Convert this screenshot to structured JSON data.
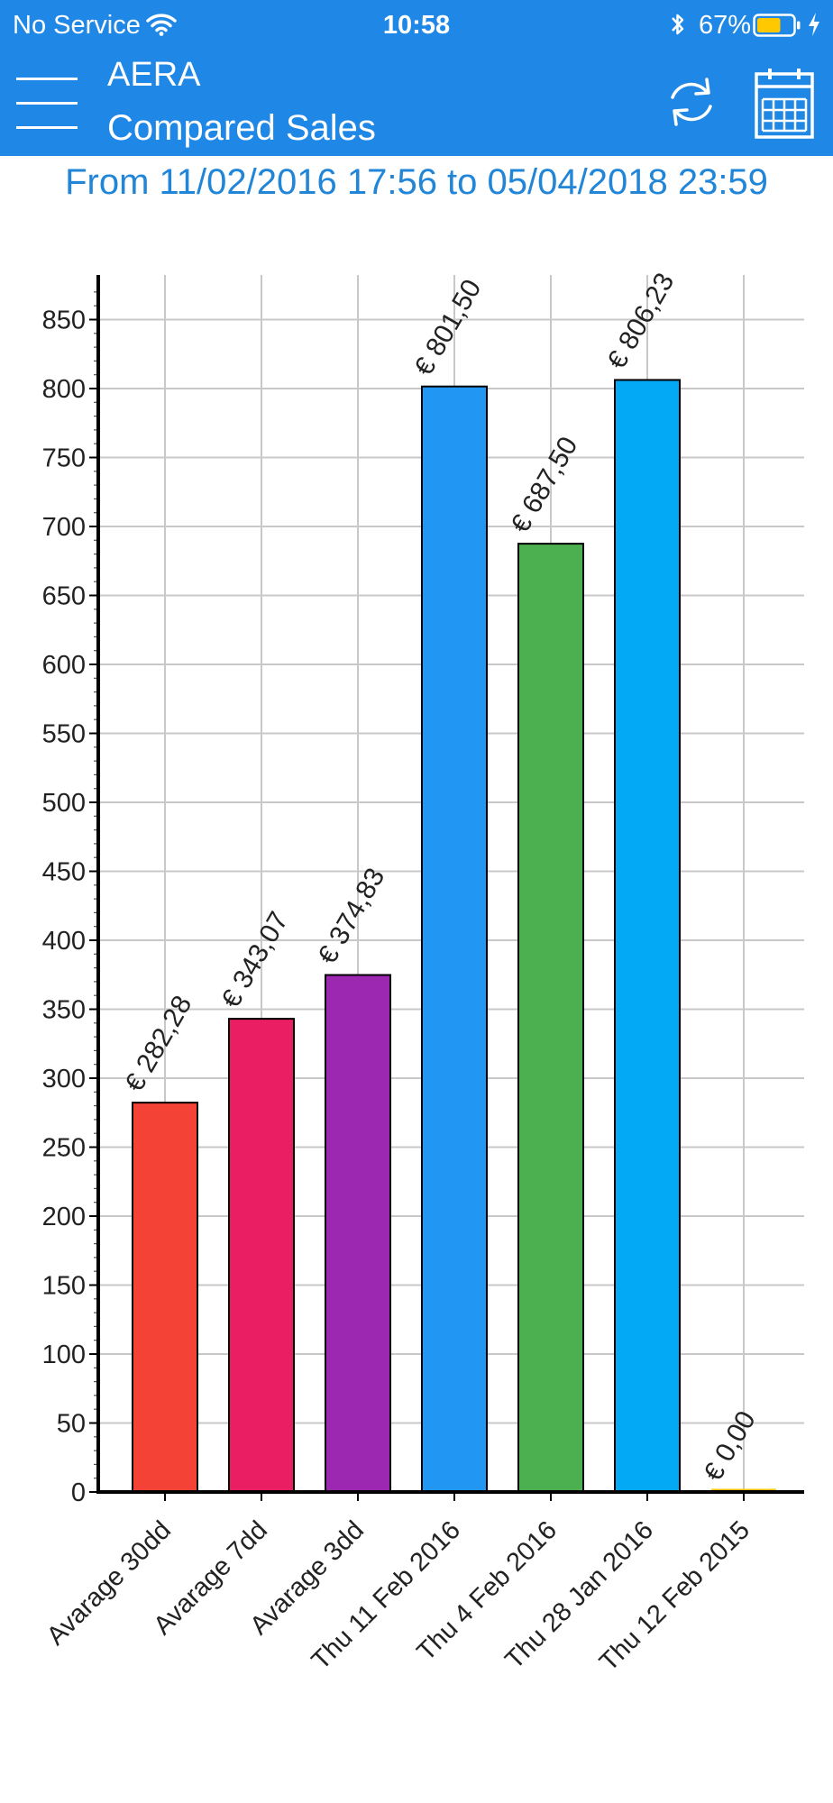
{
  "status_bar": {
    "carrier": "No Service",
    "time": "10:58",
    "battery": "67%",
    "battery_level": 0.67
  },
  "header": {
    "app_name": "AERA",
    "title": "Compared Sales",
    "menu_icon": "hamburger-menu-icon",
    "refresh_icon": "refresh-icon",
    "calendar_icon": "calendar-icon"
  },
  "period_label": "From 11/02/2016 17:56 to 05/04/2018 23:59",
  "chart_data": {
    "type": "bar",
    "categories": [
      "Avarage 30dd",
      "Avarage 7dd",
      "Avarage 3dd",
      "Thu 11 Feb 2016",
      "Thu 4 Feb 2016",
      "Thu 28 Jan 2016",
      "Thu 12 Feb 2015"
    ],
    "values": [
      282.28,
      343.07,
      374.83,
      801.5,
      687.5,
      806.23,
      0.0
    ],
    "value_labels": [
      "€ 282,28",
      "€ 343,07",
      "€ 374,83",
      "€ 801,50",
      "€ 687,50",
      "€ 806,23",
      "€ 0,00"
    ],
    "colors": [
      "#f44336",
      "#e91e63",
      "#9c27b0",
      "#2196f3",
      "#4caf50",
      "#03a9f4",
      "#ffc107"
    ],
    "y_ticks": [
      0,
      50,
      100,
      150,
      200,
      250,
      300,
      350,
      400,
      450,
      500,
      550,
      600,
      650,
      700,
      750,
      800,
      850
    ],
    "ylim": [
      0,
      880
    ],
    "grid": true,
    "legend": "none"
  }
}
